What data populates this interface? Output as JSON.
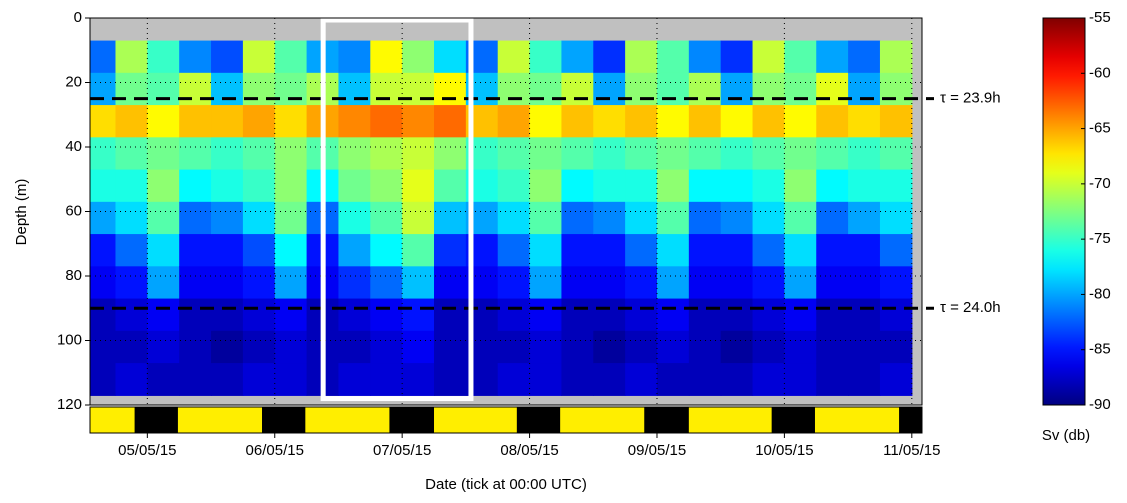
{
  "chart_data": {
    "type": "heatmap",
    "xlabel": "Date (tick at 00:00 UTC)",
    "ylabel": "Depth (m)",
    "colorbar_label": "Sv (db)",
    "xlim": [
      4.55,
      11.08
    ],
    "xticks": [
      {
        "value": 5,
        "label": "05/05/15"
      },
      {
        "value": 6,
        "label": "06/05/15"
      },
      {
        "value": 7,
        "label": "07/05/15"
      },
      {
        "value": 8,
        "label": "08/05/15"
      },
      {
        "value": 9,
        "label": "09/05/15"
      },
      {
        "value": 10,
        "label": "10/05/15"
      },
      {
        "value": 11,
        "label": "11/05/15"
      }
    ],
    "ylim": [
      0,
      120
    ],
    "yticks": [
      0,
      20,
      40,
      60,
      80,
      100,
      120
    ],
    "y_inverted": true,
    "grid": true,
    "clim": [
      -90,
      -55
    ],
    "cticks": [
      -55,
      -60,
      -65,
      -70,
      -75,
      -80,
      -85,
      -90
    ],
    "colormap": "jet",
    "x": [
      4.625,
      4.875,
      5.125,
      5.375,
      5.625,
      5.875,
      6.125,
      6.375,
      6.625,
      6.875,
      7.125,
      7.375,
      7.625,
      7.875,
      8.125,
      8.375,
      8.625,
      8.875,
      9.125,
      9.375,
      9.625,
      9.875,
      10.125,
      10.375,
      10.625,
      10.875
    ],
    "depth": [
      12,
      22,
      32,
      42,
      52,
      62,
      72,
      82,
      92,
      102,
      112
    ],
    "z": [
      [
        -82,
        -80,
        -67,
        -75,
        -76,
        -80,
        -85,
        -86,
        -88,
        -88,
        -88
      ],
      [
        -71,
        -73,
        -66,
        -74,
        -76,
        -78,
        -82,
        -85,
        -87,
        -88,
        -87
      ],
      [
        -75,
        -74,
        -68,
        -73,
        -72,
        -74,
        -78,
        -80,
        -86,
        -87,
        -88
      ],
      [
        -81,
        -70,
        -66,
        -74,
        -77,
        -82,
        -85,
        -86,
        -88,
        -88,
        -88
      ],
      [
        -83,
        -79,
        -66,
        -75,
        -76,
        -81,
        -85,
        -86,
        -88,
        -89,
        -88
      ],
      [
        -70,
        -72,
        -65,
        -74,
        -75,
        -78,
        -83,
        -85,
        -87,
        -88,
        -87
      ],
      [
        -74,
        -73,
        -67,
        -72,
        -72,
        -73,
        -77,
        -80,
        -86,
        -87,
        -87
      ],
      [
        -80,
        -71,
        -65,
        -74,
        -77,
        -82,
        -85,
        -86,
        -88,
        -88,
        -88
      ],
      [
        -81,
        -79,
        -64,
        -72,
        -73,
        -76,
        -80,
        -84,
        -87,
        -88,
        -87
      ],
      [
        -68,
        -70,
        -63,
        -71,
        -72,
        -74,
        -77,
        -82,
        -86,
        -87,
        -87
      ],
      [
        -72,
        -70,
        -64,
        -70,
        -69,
        -70,
        -74,
        -79,
        -85,
        -86,
        -87
      ],
      [
        -78,
        -68,
        -63,
        -72,
        -74,
        -79,
        -84,
        -86,
        -88,
        -88,
        -88
      ],
      [
        -82,
        -79,
        -66,
        -75,
        -76,
        -80,
        -85,
        -86,
        -88,
        -88,
        -88
      ],
      [
        -70,
        -72,
        -65,
        -74,
        -75,
        -78,
        -82,
        -85,
        -87,
        -88,
        -87
      ],
      [
        -75,
        -73,
        -68,
        -73,
        -72,
        -74,
        -78,
        -80,
        -86,
        -87,
        -87
      ],
      [
        -80,
        -70,
        -66,
        -74,
        -77,
        -82,
        -85,
        -86,
        -88,
        -88,
        -88
      ],
      [
        -84,
        -80,
        -67,
        -75,
        -76,
        -81,
        -85,
        -86,
        -88,
        -89,
        -88
      ],
      [
        -71,
        -72,
        -66,
        -74,
        -76,
        -78,
        -82,
        -85,
        -87,
        -88,
        -87
      ],
      [
        -74,
        -74,
        -68,
        -73,
        -72,
        -74,
        -78,
        -80,
        -86,
        -87,
        -88
      ],
      [
        -81,
        -71,
        -66,
        -74,
        -77,
        -82,
        -85,
        -86,
        -88,
        -88,
        -88
      ],
      [
        -84,
        -80,
        -68,
        -75,
        -77,
        -81,
        -85,
        -86,
        -88,
        -89,
        -88
      ],
      [
        -70,
        -72,
        -66,
        -74,
        -76,
        -78,
        -82,
        -85,
        -87,
        -88,
        -87
      ],
      [
        -74,
        -73,
        -68,
        -73,
        -72,
        -74,
        -78,
        -80,
        -86,
        -87,
        -87
      ],
      [
        -80,
        -69,
        -66,
        -74,
        -77,
        -82,
        -85,
        -86,
        -88,
        -88,
        -88
      ],
      [
        -82,
        -80,
        -67,
        -75,
        -76,
        -80,
        -85,
        -86,
        -88,
        -88,
        -88
      ],
      [
        -71,
        -72,
        -66,
        -74,
        -76,
        -78,
        -82,
        -85,
        -87,
        -88,
        -87
      ]
    ],
    "nights": [
      [
        4.9,
        5.24
      ],
      [
        5.9,
        6.24
      ],
      [
        6.9,
        7.25
      ],
      [
        7.9,
        8.24
      ],
      [
        8.9,
        9.25
      ],
      [
        9.9,
        10.24
      ],
      [
        10.9,
        11.08
      ]
    ],
    "highlight": {
      "x": [
        6.38,
        7.54
      ],
      "y": [
        0,
        118
      ]
    },
    "annotations": [
      {
        "y": 25,
        "label": "τ = 23.9h"
      },
      {
        "y": 90,
        "label": "τ = 24.0h"
      }
    ]
  }
}
